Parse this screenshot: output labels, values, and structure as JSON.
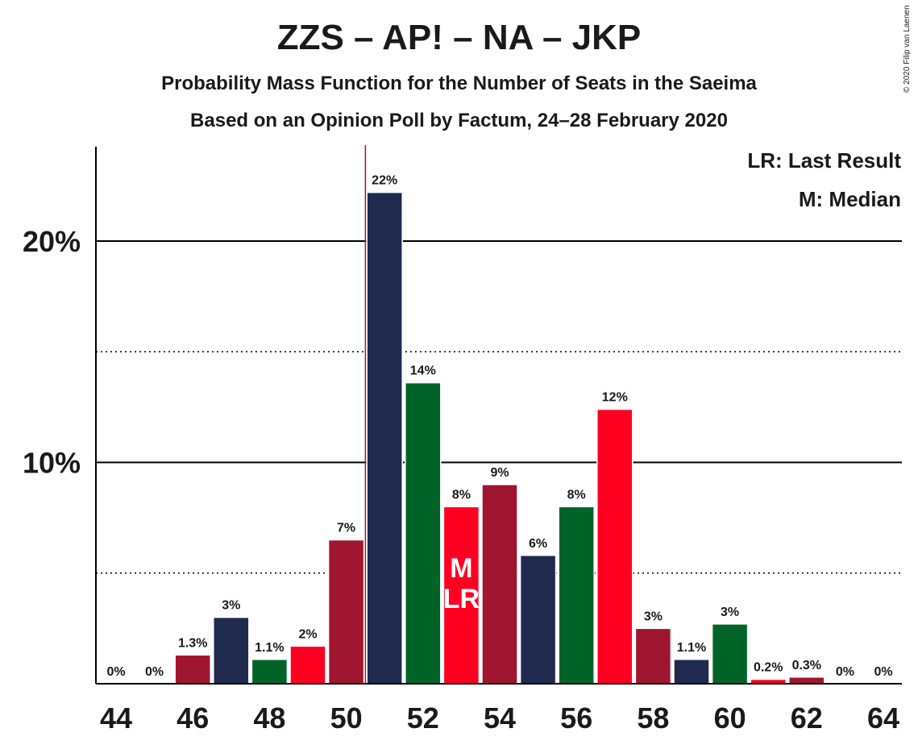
{
  "title": "ZZS – AP! – NA – JKP",
  "subtitle": "Probability Mass Function for the Number of Seats in the Saeima",
  "subtitle2": "Based on an Opinion Poll by Factum, 24–28 February 2020",
  "copyright": "© 2020 Filip van Laenen",
  "legend": {
    "last_result": "LR: Last Result",
    "median": "M: Median"
  },
  "colors": {
    "crimson": "#A01530",
    "navy": "#202A4F",
    "green": "#006429",
    "red": "#FF0022"
  },
  "chart_data": {
    "type": "bar",
    "categories": [
      44,
      45,
      46,
      47,
      48,
      49,
      50,
      51,
      52,
      53,
      54,
      55,
      56,
      57,
      58,
      59,
      60,
      61,
      62,
      63,
      64
    ],
    "values": [
      0,
      0,
      1.3,
      3.0,
      1.1,
      1.7,
      6.5,
      22.2,
      13.6,
      8.0,
      9.0,
      5.8,
      8.0,
      12.4,
      2.5,
      1.1,
      2.7,
      0.2,
      0.3,
      0,
      0
    ],
    "labels": [
      "0%",
      "0%",
      "1.3%",
      "3%",
      "1.1%",
      "2%",
      "7%",
      "22%",
      "14%",
      "8%",
      "9%",
      "6%",
      "8%",
      "12%",
      "3%",
      "1.1%",
      "3%",
      "0.2%",
      "0.3%",
      "0%",
      "0%"
    ],
    "bar_colors": [
      "#A01530",
      "#202A4F",
      "#A01530",
      "#202A4F",
      "#006429",
      "#FF0022",
      "#A01530",
      "#202A4F",
      "#006429",
      "#FF0022",
      "#A01530",
      "#202A4F",
      "#006429",
      "#FF0022",
      "#A01530",
      "#202A4F",
      "#006429",
      "#FF0022",
      "#A01530",
      "#202A4F",
      "#006429"
    ],
    "x_tick_labels": [
      "44",
      "46",
      "48",
      "50",
      "52",
      "54",
      "56",
      "58",
      "60",
      "62",
      "64"
    ],
    "y_ticks": [
      {
        "value": 10,
        "label": "10%"
      },
      {
        "value": 20,
        "label": "20%"
      }
    ],
    "y_minor_gridlines": [
      5,
      15
    ],
    "ylim": [
      0,
      24
    ],
    "last_result_seat": 50.5,
    "median_seat": 53,
    "median_marker": "M",
    "last_result_marker": "LR",
    "legend_position": "top-right"
  }
}
